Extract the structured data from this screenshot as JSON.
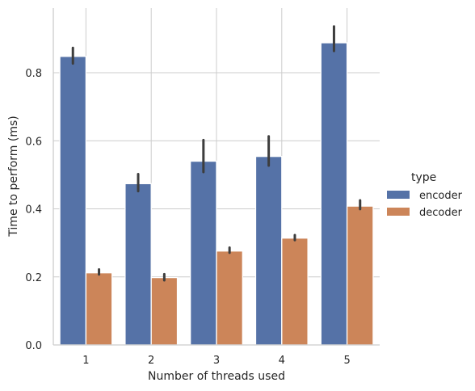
{
  "chart_data": {
    "type": "bar",
    "categories": [
      "1",
      "2",
      "3",
      "4",
      "5"
    ],
    "xlabel": "Number of threads used",
    "ylabel": "Time to perform (ms)",
    "ylim": [
      0,
      0.99
    ],
    "yticks": [
      0.0,
      0.2,
      0.4,
      0.6,
      0.8
    ],
    "ytick_labels": [
      "0.0",
      "0.2",
      "0.4",
      "0.6",
      "0.8"
    ],
    "grid": true,
    "legend": {
      "title": "type",
      "placement": "right"
    },
    "series": [
      {
        "name": "encoder",
        "color": "#5572a7",
        "values": [
          0.848,
          0.474,
          0.54,
          0.554,
          0.888
        ],
        "ci": [
          [
            0.827,
            0.873
          ],
          [
            0.452,
            0.502
          ],
          [
            0.508,
            0.602
          ],
          [
            0.527,
            0.613
          ],
          [
            0.864,
            0.936
          ]
        ]
      },
      {
        "name": "decoder",
        "color": "#cc8559",
        "values": [
          0.212,
          0.198,
          0.276,
          0.314,
          0.408
        ],
        "ci": [
          [
            0.207,
            0.222
          ],
          [
            0.19,
            0.208
          ],
          [
            0.271,
            0.286
          ],
          [
            0.308,
            0.323
          ],
          [
            0.399,
            0.425
          ]
        ]
      }
    ]
  }
}
